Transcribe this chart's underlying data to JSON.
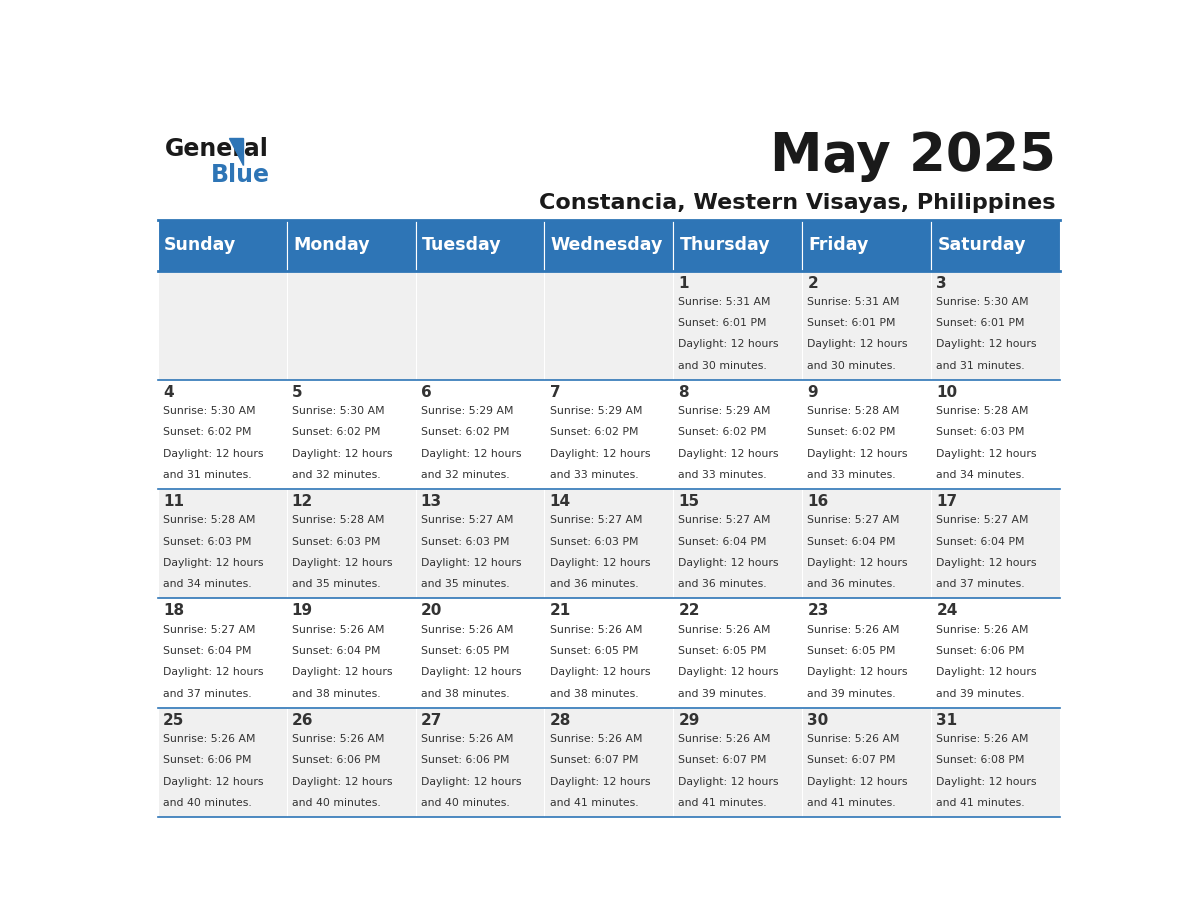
{
  "title": "May 2025",
  "subtitle": "Constancia, Western Visayas, Philippines",
  "header_bg_color": "#2E75B6",
  "header_text_color": "#FFFFFF",
  "day_names": [
    "Sunday",
    "Monday",
    "Tuesday",
    "Wednesday",
    "Thursday",
    "Friday",
    "Saturday"
  ],
  "odd_row_bg": "#F0F0F0",
  "even_row_bg": "#FFFFFF",
  "cell_border_color": "#2E75B6",
  "day_number_color": "#333333",
  "info_text_color": "#333333",
  "calendar_data": [
    [
      null,
      null,
      null,
      null,
      {
        "day": 1,
        "sunrise": "5:31 AM",
        "sunset": "6:01 PM",
        "daylight": "12 hours and 30 minutes."
      },
      {
        "day": 2,
        "sunrise": "5:31 AM",
        "sunset": "6:01 PM",
        "daylight": "12 hours and 30 minutes."
      },
      {
        "day": 3,
        "sunrise": "5:30 AM",
        "sunset": "6:01 PM",
        "daylight": "12 hours and 31 minutes."
      }
    ],
    [
      {
        "day": 4,
        "sunrise": "5:30 AM",
        "sunset": "6:02 PM",
        "daylight": "12 hours and 31 minutes."
      },
      {
        "day": 5,
        "sunrise": "5:30 AM",
        "sunset": "6:02 PM",
        "daylight": "12 hours and 32 minutes."
      },
      {
        "day": 6,
        "sunrise": "5:29 AM",
        "sunset": "6:02 PM",
        "daylight": "12 hours and 32 minutes."
      },
      {
        "day": 7,
        "sunrise": "5:29 AM",
        "sunset": "6:02 PM",
        "daylight": "12 hours and 33 minutes."
      },
      {
        "day": 8,
        "sunrise": "5:29 AM",
        "sunset": "6:02 PM",
        "daylight": "12 hours and 33 minutes."
      },
      {
        "day": 9,
        "sunrise": "5:28 AM",
        "sunset": "6:02 PM",
        "daylight": "12 hours and 33 minutes."
      },
      {
        "day": 10,
        "sunrise": "5:28 AM",
        "sunset": "6:03 PM",
        "daylight": "12 hours and 34 minutes."
      }
    ],
    [
      {
        "day": 11,
        "sunrise": "5:28 AM",
        "sunset": "6:03 PM",
        "daylight": "12 hours and 34 minutes."
      },
      {
        "day": 12,
        "sunrise": "5:28 AM",
        "sunset": "6:03 PM",
        "daylight": "12 hours and 35 minutes."
      },
      {
        "day": 13,
        "sunrise": "5:27 AM",
        "sunset": "6:03 PM",
        "daylight": "12 hours and 35 minutes."
      },
      {
        "day": 14,
        "sunrise": "5:27 AM",
        "sunset": "6:03 PM",
        "daylight": "12 hours and 36 minutes."
      },
      {
        "day": 15,
        "sunrise": "5:27 AM",
        "sunset": "6:04 PM",
        "daylight": "12 hours and 36 minutes."
      },
      {
        "day": 16,
        "sunrise": "5:27 AM",
        "sunset": "6:04 PM",
        "daylight": "12 hours and 36 minutes."
      },
      {
        "day": 17,
        "sunrise": "5:27 AM",
        "sunset": "6:04 PM",
        "daylight": "12 hours and 37 minutes."
      }
    ],
    [
      {
        "day": 18,
        "sunrise": "5:27 AM",
        "sunset": "6:04 PM",
        "daylight": "12 hours and 37 minutes."
      },
      {
        "day": 19,
        "sunrise": "5:26 AM",
        "sunset": "6:04 PM",
        "daylight": "12 hours and 38 minutes."
      },
      {
        "day": 20,
        "sunrise": "5:26 AM",
        "sunset": "6:05 PM",
        "daylight": "12 hours and 38 minutes."
      },
      {
        "day": 21,
        "sunrise": "5:26 AM",
        "sunset": "6:05 PM",
        "daylight": "12 hours and 38 minutes."
      },
      {
        "day": 22,
        "sunrise": "5:26 AM",
        "sunset": "6:05 PM",
        "daylight": "12 hours and 39 minutes."
      },
      {
        "day": 23,
        "sunrise": "5:26 AM",
        "sunset": "6:05 PM",
        "daylight": "12 hours and 39 minutes."
      },
      {
        "day": 24,
        "sunrise": "5:26 AM",
        "sunset": "6:06 PM",
        "daylight": "12 hours and 39 minutes."
      }
    ],
    [
      {
        "day": 25,
        "sunrise": "5:26 AM",
        "sunset": "6:06 PM",
        "daylight": "12 hours and 40 minutes."
      },
      {
        "day": 26,
        "sunrise": "5:26 AM",
        "sunset": "6:06 PM",
        "daylight": "12 hours and 40 minutes."
      },
      {
        "day": 27,
        "sunrise": "5:26 AM",
        "sunset": "6:06 PM",
        "daylight": "12 hours and 40 minutes."
      },
      {
        "day": 28,
        "sunrise": "5:26 AM",
        "sunset": "6:07 PM",
        "daylight": "12 hours and 41 minutes."
      },
      {
        "day": 29,
        "sunrise": "5:26 AM",
        "sunset": "6:07 PM",
        "daylight": "12 hours and 41 minutes."
      },
      {
        "day": 30,
        "sunrise": "5:26 AM",
        "sunset": "6:07 PM",
        "daylight": "12 hours and 41 minutes."
      },
      {
        "day": 31,
        "sunrise": "5:26 AM",
        "sunset": "6:08 PM",
        "daylight": "12 hours and 41 minutes."
      }
    ]
  ]
}
